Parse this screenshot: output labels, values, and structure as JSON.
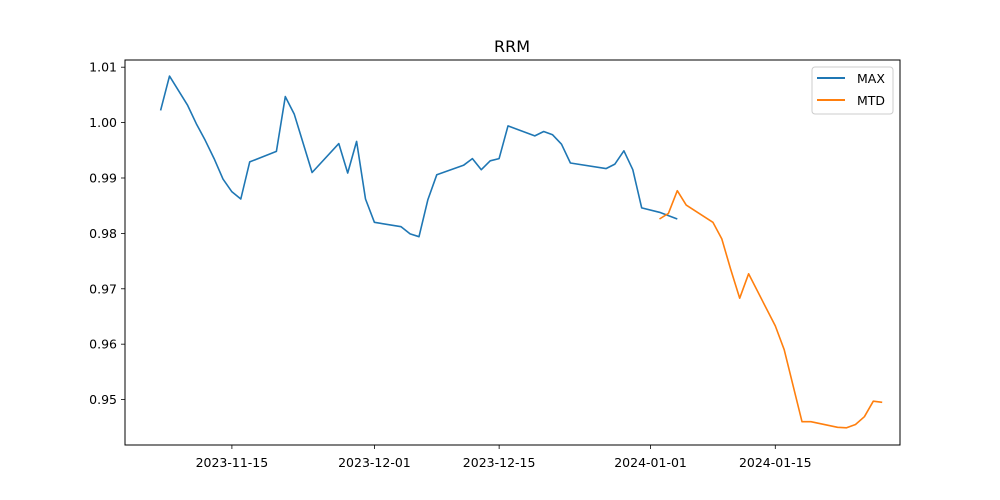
{
  "chart_data": {
    "type": "line",
    "title": "RRM",
    "xlabel": "",
    "ylabel": "",
    "x_tick_labels": [
      "2023-11-15",
      "2023-12-01",
      "2023-12-15",
      "2024-01-01",
      "2024-01-15"
    ],
    "y_tick_labels": [
      "0.95",
      "0.96",
      "0.97",
      "0.98",
      "0.99",
      "1.00",
      "1.01"
    ],
    "x_ticks": [
      "2023-11-15",
      "2023-12-01",
      "2023-12-15",
      "2024-01-01",
      "2024-01-15"
    ],
    "y_ticks": [
      0.95,
      0.96,
      0.97,
      0.98,
      0.99,
      1.0,
      1.01
    ],
    "xlim": [
      "2023-11-03",
      "2024-01-29"
    ],
    "ylim": [
      0.9418,
      1.0113
    ],
    "grid": false,
    "legend_position": "top-right",
    "colors": {
      "MAX": "#1f77b4",
      "MTD": "#ff7f0e"
    },
    "series": [
      {
        "name": "MAX",
        "points": [
          [
            "2023-11-07",
            1.0022
          ],
          [
            "2023-11-08",
            1.0084
          ],
          [
            "2023-11-10",
            1.0032
          ],
          [
            "2023-11-11",
            0.9998
          ],
          [
            "2023-11-12",
            0.9968
          ],
          [
            "2023-11-13",
            0.9935
          ],
          [
            "2023-11-14",
            0.9898
          ],
          [
            "2023-11-15",
            0.9875
          ],
          [
            "2023-11-16",
            0.9862
          ],
          [
            "2023-11-17",
            0.9929
          ],
          [
            "2023-11-20",
            0.9948
          ],
          [
            "2023-11-21",
            1.0047
          ],
          [
            "2023-11-22",
            1.0015
          ],
          [
            "2023-11-24",
            0.991
          ],
          [
            "2023-11-27",
            0.9962
          ],
          [
            "2023-11-28",
            0.9909
          ],
          [
            "2023-11-29",
            0.9966
          ],
          [
            "2023-11-30",
            0.9862
          ],
          [
            "2023-12-01",
            0.982
          ],
          [
            "2023-12-04",
            0.9812
          ],
          [
            "2023-12-05",
            0.9799
          ],
          [
            "2023-12-06",
            0.9794
          ],
          [
            "2023-12-07",
            0.9861
          ],
          [
            "2023-12-08",
            0.9906
          ],
          [
            "2023-12-11",
            0.9923
          ],
          [
            "2023-12-12",
            0.9935
          ],
          [
            "2023-12-13",
            0.9915
          ],
          [
            "2023-12-14",
            0.9931
          ],
          [
            "2023-12-15",
            0.9935
          ],
          [
            "2023-12-16",
            0.9994
          ],
          [
            "2023-12-19",
            0.9976
          ],
          [
            "2023-12-20",
            0.9984
          ],
          [
            "2023-12-21",
            0.9978
          ],
          [
            "2023-12-22",
            0.9961
          ],
          [
            "2023-12-23",
            0.9927
          ],
          [
            "2023-12-27",
            0.9917
          ],
          [
            "2023-12-28",
            0.9925
          ],
          [
            "2023-12-29",
            0.9949
          ],
          [
            "2023-12-30",
            0.9915
          ],
          [
            "2023-12-31",
            0.9846
          ],
          [
            "2024-01-02",
            0.9838
          ],
          [
            "2024-01-04",
            0.9826
          ]
        ]
      },
      {
        "name": "MTD",
        "points": [
          [
            "2024-01-02",
            0.9826
          ],
          [
            "2024-01-03",
            0.9836
          ],
          [
            "2024-01-04",
            0.9877
          ],
          [
            "2024-01-05",
            0.9851
          ],
          [
            "2024-01-08",
            0.982
          ],
          [
            "2024-01-09",
            0.979
          ],
          [
            "2024-01-10",
            0.9735
          ],
          [
            "2024-01-11",
            0.9683
          ],
          [
            "2024-01-12",
            0.9727
          ],
          [
            "2024-01-15",
            0.9633
          ],
          [
            "2024-01-16",
            0.959
          ],
          [
            "2024-01-18",
            0.946
          ],
          [
            "2024-01-19",
            0.946
          ],
          [
            "2024-01-22",
            0.945
          ],
          [
            "2024-01-23",
            0.9449
          ],
          [
            "2024-01-24",
            0.9455
          ],
          [
            "2024-01-25",
            0.9469
          ],
          [
            "2024-01-26",
            0.9497
          ],
          [
            "2024-01-27",
            0.9495
          ]
        ]
      }
    ]
  }
}
